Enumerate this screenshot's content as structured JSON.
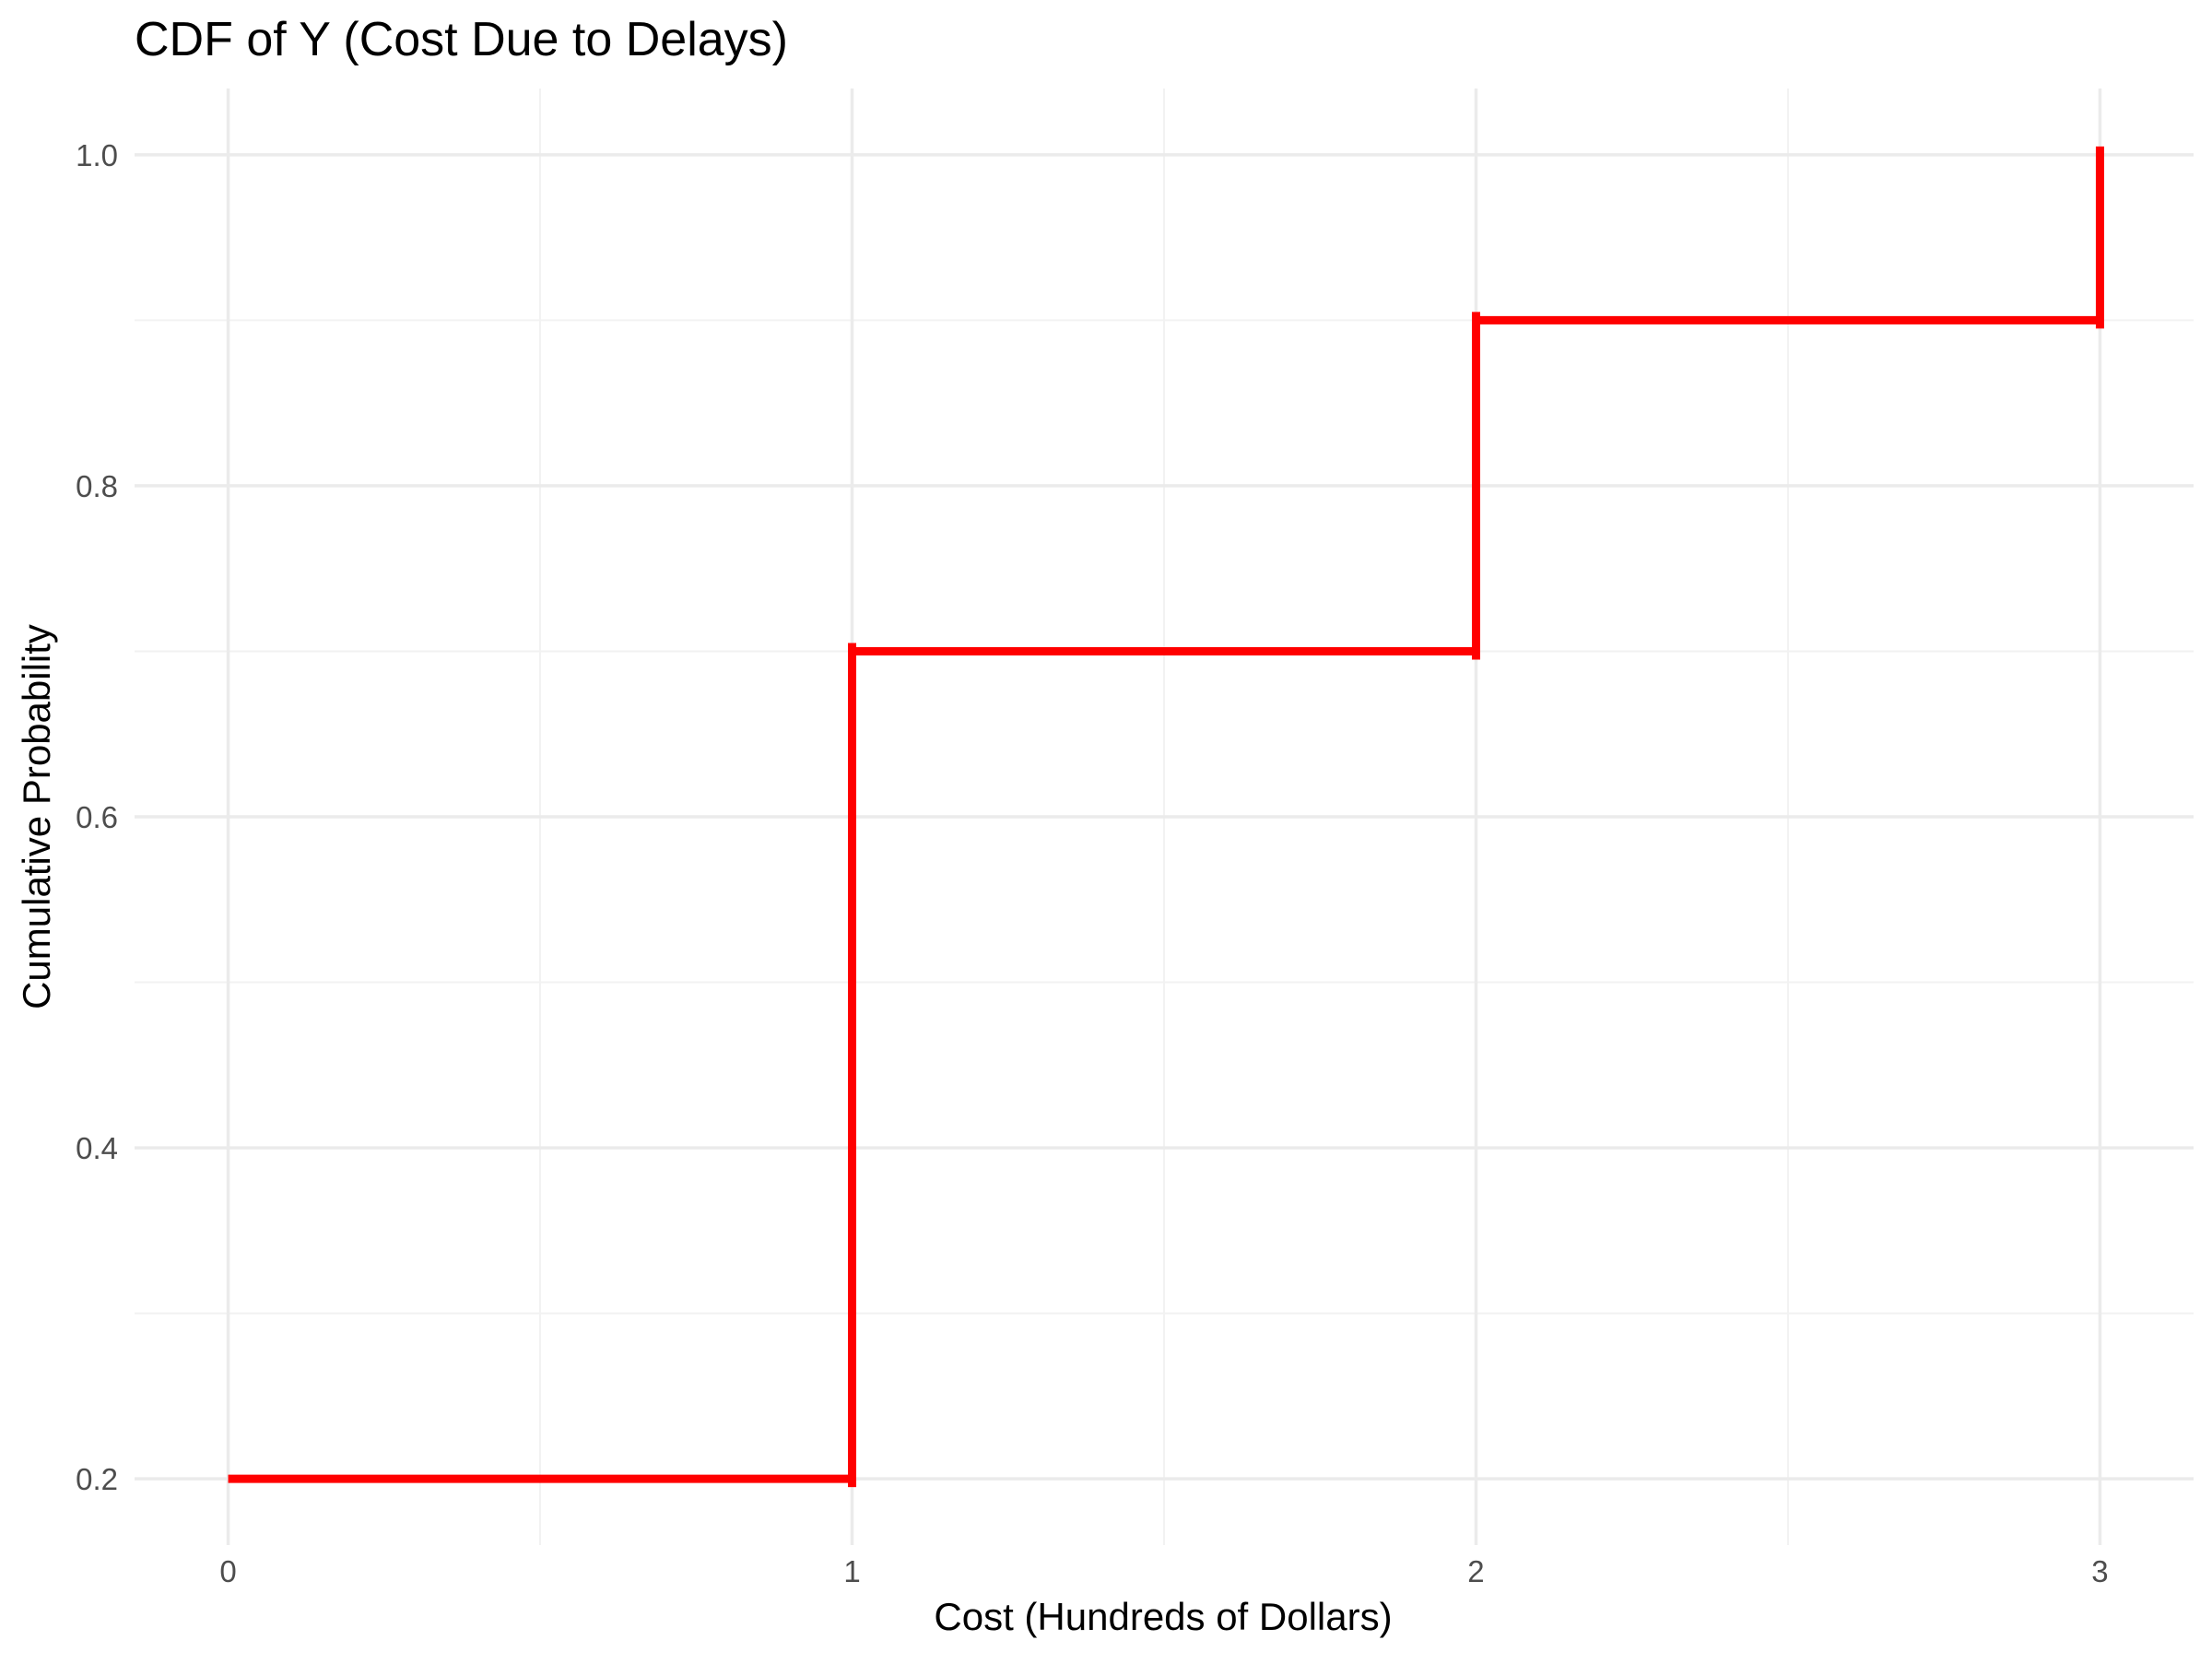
{
  "chart_data": {
    "type": "line",
    "step": true,
    "title": "CDF of Y (Cost Due to Delays)",
    "xlabel": "Cost (Hundreds of Dollars)",
    "ylabel": "Cumulative Probability",
    "series": [
      {
        "x": [
          0,
          1,
          2,
          3
        ],
        "y": [
          0.2,
          0.7,
          0.9,
          1.0
        ],
        "color": "#ff0000"
      }
    ],
    "xlim": [
      -0.15,
      3.15
    ],
    "ylim": [
      0.16,
      1.04
    ],
    "x_ticks": [
      0,
      1,
      2,
      3
    ],
    "x_tick_labels": [
      "0",
      "1",
      "2",
      "3"
    ],
    "y_ticks": [
      0.2,
      0.4,
      0.6,
      0.8,
      1.0
    ],
    "y_tick_labels": [
      "0.2",
      "0.4",
      "0.6",
      "0.8",
      "1.0"
    ],
    "x_minor_ticks": [
      0.5,
      1.5,
      2.5
    ],
    "y_minor_ticks": [
      0.3,
      0.5,
      0.7,
      0.9
    ],
    "grid": true,
    "legend": "none"
  }
}
